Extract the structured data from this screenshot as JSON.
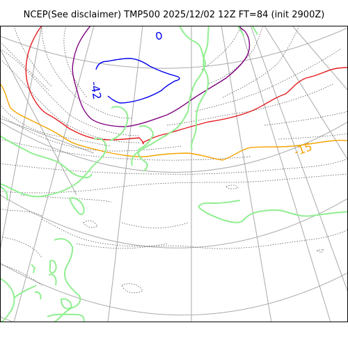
{
  "title": "NCEP(See disclaimer) TMP500 2025/12/02 12Z FT=84 (init 2900Z)",
  "contour_labels": [
    {
      "text": "-42",
      "color": "#0000ee"
    },
    {
      "text": "-15",
      "color": "#f5a300"
    }
  ],
  "colors": {
    "coastline": "#90ee90",
    "graticule": "#a8a8a8",
    "contour_minus_15": "#f5a300",
    "contour_minus_42": "#0000ee",
    "contour_red": "#e31a1c",
    "contour_purple": "#800080"
  }
}
